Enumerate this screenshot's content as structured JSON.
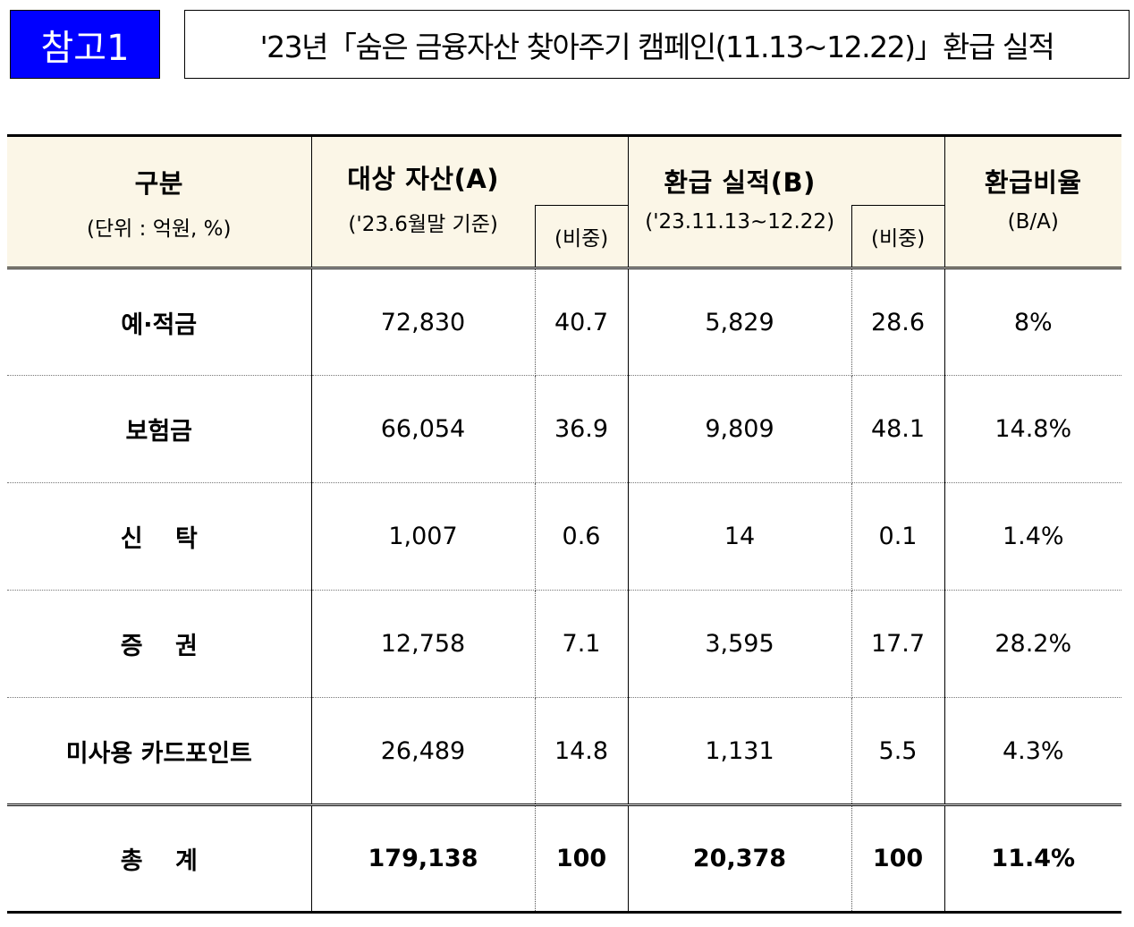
{
  "header": {
    "badge": "참고1",
    "title": "'23년「숨은 금융자산 찾아주기 캠페인(11.13~12.22)」환급 실적"
  },
  "table": {
    "columns": {
      "category": {
        "label": "구분",
        "unit": "(단위 : 억원, %)"
      },
      "assets": {
        "label": "대상 자산(A)",
        "basis": "('23.6월말 기준)",
        "share": "(비중)"
      },
      "refund": {
        "label": "환급 실적(B)",
        "period": "('23.11.13~12.22)",
        "share": "(비중)"
      },
      "ratio": {
        "label": "환급비율",
        "formula": "(B/A)"
      }
    },
    "rows": [
      {
        "category": "예·적금",
        "assets": "72,830",
        "assets_share": "40.7",
        "refund": "5,829",
        "refund_share": "28.6",
        "ratio": "8%"
      },
      {
        "category": "보험금",
        "assets": "66,054",
        "assets_share": "36.9",
        "refund": "9,809",
        "refund_share": "48.1",
        "ratio": "14.8%"
      },
      {
        "category": "신　 탁",
        "assets": "1,007",
        "assets_share": "0.6",
        "refund": "14",
        "refund_share": "0.1",
        "ratio": "1.4%"
      },
      {
        "category": "증　 권",
        "assets": "12,758",
        "assets_share": "7.1",
        "refund": "3,595",
        "refund_share": "17.7",
        "ratio": "28.2%"
      },
      {
        "category": "미사용 카드포인트",
        "assets": "26,489",
        "assets_share": "14.8",
        "refund": "1,131",
        "refund_share": "5.5",
        "ratio": "4.3%"
      }
    ],
    "total": {
      "category": "총　 계",
      "assets": "179,138",
      "assets_share": "100",
      "refund": "20,378",
      "refund_share": "100",
      "ratio": "11.4%"
    }
  }
}
